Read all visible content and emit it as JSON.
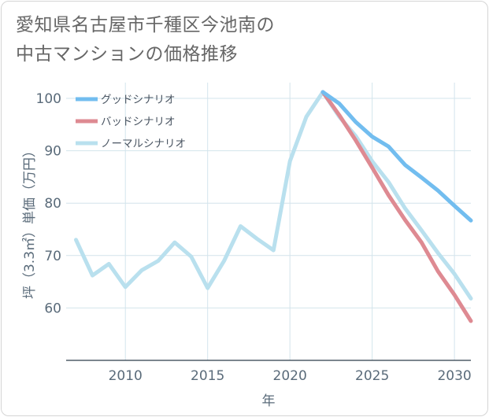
{
  "title": {
    "line1": "愛知県名古屋市千種区今池南の",
    "line2": "中古マンションの価格推移"
  },
  "colors": {
    "good": "#72bdef",
    "bad": "#de8a92",
    "normal": "#b9e0ee",
    "grid": "#d3e4ec",
    "axis_text": "#5a6b7a"
  },
  "chart_data": {
    "type": "line",
    "xlabel": "年",
    "ylabel": "坪（3.3㎡）単価（万円）",
    "xlim": [
      2006.4,
      2031
    ],
    "ylim": [
      50,
      103
    ],
    "x_ticks": [
      2010,
      2015,
      2020,
      2025,
      2030
    ],
    "y_ticks": [
      60,
      70,
      80,
      90,
      100
    ],
    "grid": true,
    "legend_position": "top-left",
    "series": [
      {
        "key": "good",
        "name": "グッドシナリオ",
        "x": [
          2022,
          2023,
          2024,
          2025,
          2026,
          2027,
          2028,
          2029,
          2030,
          2031
        ],
        "y": [
          101.2,
          99.0,
          95.5,
          92.7,
          90.8,
          87.3,
          84.9,
          82.4,
          79.5,
          76.7
        ]
      },
      {
        "key": "bad",
        "name": "バッドシナリオ",
        "x": [
          2022,
          2023,
          2024,
          2025,
          2026,
          2027,
          2028,
          2029,
          2030,
          2031
        ],
        "y": [
          101.2,
          96.8,
          92.0,
          86.8,
          81.5,
          76.8,
          72.5,
          67.0,
          62.5,
          57.5
        ]
      },
      {
        "key": "normal",
        "name": "ノーマルシナリオ",
        "x": [
          2007,
          2008,
          2009,
          2010,
          2011,
          2012,
          2013,
          2014,
          2015,
          2016,
          2017,
          2018,
          2019,
          2020,
          2021,
          2022,
          2023,
          2024,
          2025,
          2026,
          2027,
          2028,
          2029,
          2030,
          2031
        ],
        "y": [
          73.0,
          66.2,
          68.4,
          64.0,
          67.2,
          69.0,
          72.5,
          69.8,
          63.8,
          69.0,
          75.6,
          73.2,
          71.0,
          88.0,
          96.5,
          101.2,
          96.5,
          92.8,
          88.0,
          84.0,
          79.0,
          74.8,
          70.5,
          66.5,
          61.8
        ]
      }
    ]
  }
}
